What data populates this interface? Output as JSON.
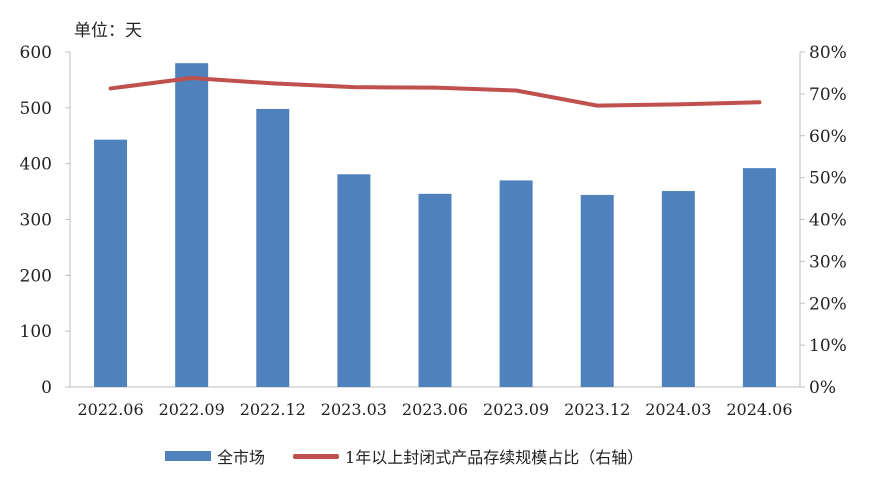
{
  "unit_label": "单位：天",
  "chart_data": {
    "type": "bar",
    "categories": [
      "2022.06",
      "2022.09",
      "2022.12",
      "2023.03",
      "2023.06",
      "2023.09",
      "2023.12",
      "2024.03",
      "2024.06"
    ],
    "series": [
      {
        "name": "全市场",
        "type": "bar",
        "axis": "left",
        "color": "#4f81bd",
        "values": [
          443,
          580,
          498,
          381,
          346,
          370,
          344,
          351,
          392
        ]
      },
      {
        "name": "1年以上封闭式产品存续规模占比（右轴）",
        "type": "line",
        "axis": "right",
        "color": "#c0504d",
        "values": [
          71.3,
          73.8,
          72.5,
          71.6,
          71.5,
          70.8,
          67.2,
          67.5,
          68.0
        ]
      }
    ],
    "left_axis": {
      "min": 0,
      "max": 600,
      "ticks": [
        "0",
        "100",
        "200",
        "300",
        "400",
        "500",
        "600"
      ]
    },
    "right_axis": {
      "min": 0,
      "max": 80,
      "ticks": [
        "0%",
        "10%",
        "20%",
        "30%",
        "40%",
        "50%",
        "60%",
        "70%",
        "80%"
      ]
    },
    "grid": false,
    "legend_position": "bottom"
  }
}
